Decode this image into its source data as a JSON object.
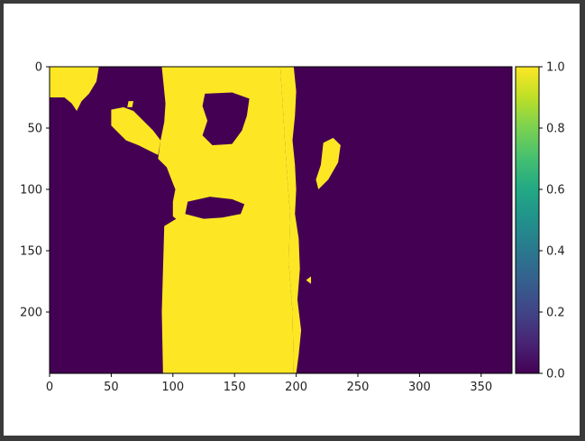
{
  "figure": {
    "colors": {
      "low": "#440154",
      "high": "#fde725",
      "axis": "#000000",
      "text": "#222222",
      "frame": "#3a3a3a"
    }
  },
  "chart_data": {
    "type": "heatmap",
    "title": "",
    "xlabel": "",
    "ylabel": "",
    "colormap": "viridis",
    "value_range": [
      0.0,
      1.0
    ],
    "image_size": [
      375,
      250
    ],
    "xlim": [
      0,
      375
    ],
    "ylim": [
      250,
      0
    ],
    "xticks": [
      0,
      50,
      100,
      150,
      200,
      250,
      300,
      350
    ],
    "xtick_labels": [
      "0",
      "50",
      "100",
      "150",
      "200",
      "250",
      "300",
      "350"
    ],
    "yticks": [
      0,
      50,
      100,
      150,
      200
    ],
    "ytick_labels": [
      "0",
      "50",
      "100",
      "150",
      "200"
    ],
    "colorbar": {
      "ticks": [
        0.0,
        0.2,
        0.4,
        0.6,
        0.8,
        1.0
      ],
      "tick_labels": [
        "0.0",
        "0.2",
        "0.4",
        "0.6",
        "0.8",
        "1.0"
      ]
    },
    "regions_value_1": [
      {
        "name": "central-column",
        "points": [
          [
            91,
            0
          ],
          [
            187,
            0
          ],
          [
            189,
            30
          ],
          [
            192,
            80
          ],
          [
            195,
            120
          ],
          [
            194,
            160
          ],
          [
            197,
            200
          ],
          [
            198,
            250
          ],
          [
            92,
            250
          ],
          [
            91,
            200
          ],
          [
            93,
            130
          ],
          [
            106,
            122
          ],
          [
            118,
            118
          ],
          [
            140,
            116
          ],
          [
            155,
            122
          ],
          [
            160,
            130
          ],
          [
            150,
            135
          ],
          [
            130,
            130
          ],
          [
            110,
            130
          ],
          [
            100,
            122
          ],
          [
            100,
            110
          ],
          [
            102,
            100
          ],
          [
            100,
            95
          ],
          [
            95,
            82
          ],
          [
            88,
            75
          ],
          [
            90,
            60
          ],
          [
            93,
            45
          ],
          [
            94,
            30
          ]
        ]
      },
      {
        "name": "right-edge-strip",
        "points": [
          [
            187,
            0
          ],
          [
            198,
            0
          ],
          [
            200,
            20
          ],
          [
            199,
            40
          ],
          [
            197,
            60
          ],
          [
            199,
            80
          ],
          [
            200,
            100
          ],
          [
            199,
            120
          ],
          [
            202,
            140
          ],
          [
            203,
            165
          ],
          [
            201,
            190
          ],
          [
            204,
            215
          ],
          [
            202,
            235
          ],
          [
            200,
            250
          ],
          [
            198,
            250
          ],
          [
            197,
            200
          ],
          [
            194,
            160
          ],
          [
            195,
            120
          ],
          [
            192,
            80
          ],
          [
            189,
            30
          ]
        ]
      },
      {
        "name": "top-left-patch",
        "points": [
          [
            0,
            0
          ],
          [
            40,
            0
          ],
          [
            38,
            12
          ],
          [
            32,
            22
          ],
          [
            26,
            28
          ],
          [
            22,
            36
          ],
          [
            18,
            30
          ],
          [
            12,
            25
          ],
          [
            0,
            25
          ]
        ]
      },
      {
        "name": "upper-left-arm",
        "points": [
          [
            50,
            35
          ],
          [
            60,
            33
          ],
          [
            68,
            36
          ],
          [
            74,
            42
          ],
          [
            84,
            52
          ],
          [
            90,
            60
          ],
          [
            88,
            72
          ],
          [
            80,
            68
          ],
          [
            72,
            64
          ],
          [
            62,
            60
          ],
          [
            56,
            54
          ],
          [
            50,
            48
          ]
        ]
      },
      {
        "name": "small-right-blob",
        "points": [
          [
            222,
            62
          ],
          [
            230,
            58
          ],
          [
            236,
            64
          ],
          [
            234,
            78
          ],
          [
            226,
            92
          ],
          [
            218,
            100
          ],
          [
            216,
            92
          ],
          [
            220,
            80
          ]
        ]
      },
      {
        "name": "speck-a",
        "points": [
          [
            208,
            174
          ],
          [
            212,
            171
          ],
          [
            212,
            177
          ]
        ]
      },
      {
        "name": "speck-b",
        "points": [
          [
            150,
            100
          ],
          [
            154,
            98
          ],
          [
            156,
            104
          ],
          [
            151,
            106
          ]
        ]
      },
      {
        "name": "speck-c",
        "points": [
          [
            64,
            28
          ],
          [
            68,
            28
          ],
          [
            67,
            33
          ],
          [
            63,
            33
          ]
        ]
      }
    ],
    "regions_value_0": [
      {
        "name": "upper-hole",
        "points": [
          [
            126,
            22
          ],
          [
            148,
            21
          ],
          [
            162,
            26
          ],
          [
            160,
            40
          ],
          [
            156,
            52
          ],
          [
            148,
            63
          ],
          [
            132,
            64
          ],
          [
            124,
            56
          ],
          [
            128,
            44
          ],
          [
            124,
            32
          ]
        ]
      },
      {
        "name": "mid-hole",
        "points": [
          [
            112,
            110
          ],
          [
            130,
            106
          ],
          [
            148,
            108
          ],
          [
            158,
            112
          ],
          [
            155,
            120
          ],
          [
            140,
            123
          ],
          [
            125,
            124
          ],
          [
            110,
            120
          ]
        ]
      }
    ]
  }
}
